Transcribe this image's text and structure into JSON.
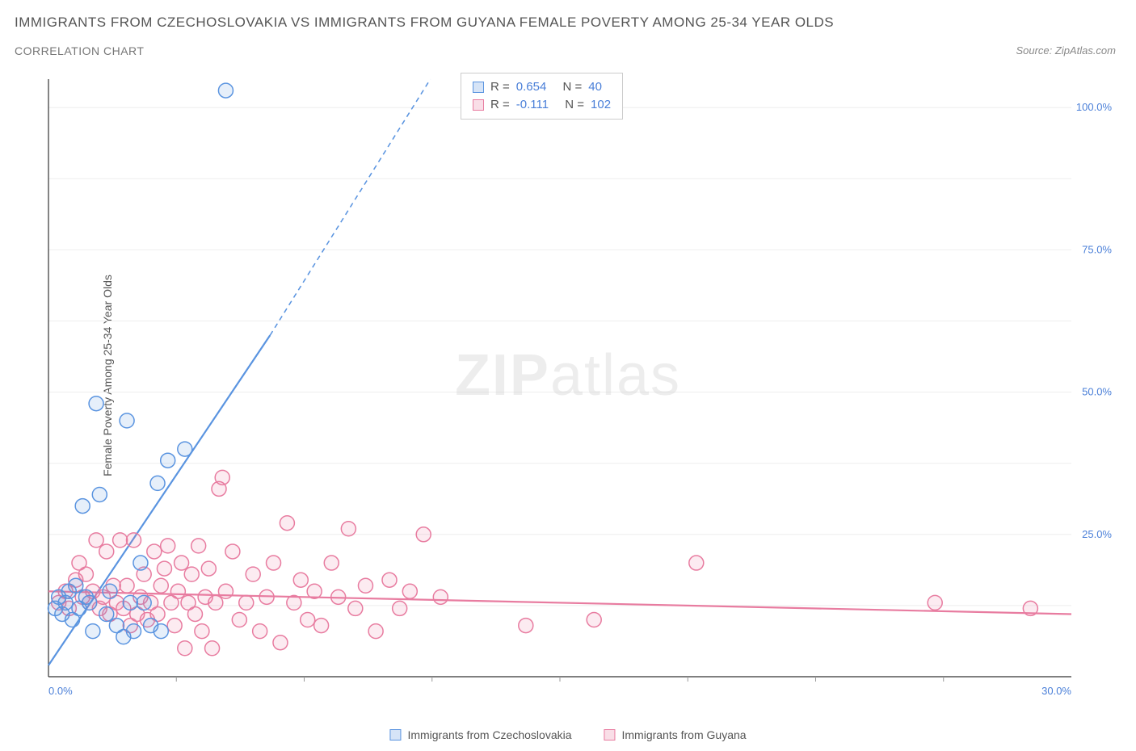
{
  "title_main": "IMMIGRANTS FROM CZECHOSLOVAKIA VS IMMIGRANTS FROM GUYANA FEMALE POVERTY AMONG 25-34 YEAR OLDS",
  "title_sub": "CORRELATION CHART",
  "source_prefix": "Source: ",
  "source_name": "ZipAtlas.com",
  "y_axis_label": "Female Poverty Among 25-34 Year Olds",
  "watermark_a": "ZIP",
  "watermark_b": "atlas",
  "chart": {
    "type": "scatter",
    "background_color": "#ffffff",
    "grid_color": "#eeeeee",
    "axis_color": "#333333",
    "tick_color": "#999999",
    "x_range": [
      0,
      30
    ],
    "y_range": [
      0,
      105
    ],
    "x_ticks": [
      {
        "v": 0,
        "l": "0.0%"
      },
      {
        "v": 30,
        "l": "30.0%"
      }
    ],
    "y_ticks": [
      {
        "v": 25,
        "l": "25.0%"
      },
      {
        "v": 50,
        "l": "50.0%"
      },
      {
        "v": 75,
        "l": "75.0%"
      },
      {
        "v": 100,
        "l": "100.0%"
      }
    ],
    "x_minor_ticks": [
      3.75,
      7.5,
      11.25,
      15,
      18.75,
      22.5,
      26.25
    ],
    "y_minor_grid": [
      12.5,
      25,
      37.5,
      50,
      62.5,
      75,
      87.5,
      100
    ],
    "marker_radius": 9,
    "marker_stroke_width": 1.5,
    "marker_fill_opacity": 0.15,
    "series": [
      {
        "key": "czechoslovakia",
        "label": "Immigrants from Czechoslovakia",
        "color": "#5a94e0",
        "R": "0.654",
        "N": "40",
        "trend": {
          "x1": 0,
          "y1": 2,
          "x2_solid": 6.5,
          "y2_solid": 60,
          "x2_dash": 11.2,
          "y2_dash": 105,
          "width": 2.2,
          "dash": "6,5"
        },
        "points": [
          [
            0.2,
            12
          ],
          [
            0.3,
            14
          ],
          [
            0.4,
            11
          ],
          [
            0.5,
            13
          ],
          [
            0.6,
            15
          ],
          [
            0.7,
            10
          ],
          [
            0.8,
            16
          ],
          [
            0.9,
            12
          ],
          [
            1.0,
            30
          ],
          [
            1.1,
            14
          ],
          [
            1.2,
            13
          ],
          [
            1.3,
            8
          ],
          [
            1.5,
            32
          ],
          [
            1.7,
            11
          ],
          [
            1.8,
            15
          ],
          [
            2.0,
            9
          ],
          [
            2.2,
            7
          ],
          [
            2.4,
            13
          ],
          [
            2.5,
            8
          ],
          [
            2.7,
            20
          ],
          [
            3.0,
            9
          ],
          [
            1.4,
            48
          ],
          [
            2.3,
            45
          ],
          [
            3.2,
            34
          ],
          [
            3.5,
            38
          ],
          [
            4.0,
            40
          ],
          [
            2.8,
            13
          ],
          [
            3.3,
            8
          ],
          [
            5.2,
            103
          ]
        ]
      },
      {
        "key": "guyana",
        "label": "Immigrants from Guyana",
        "color": "#e87ca0",
        "R": "-0.111",
        "N": "102",
        "trend": {
          "x1": 0,
          "y1": 15,
          "x2_solid": 30,
          "y2_solid": 11,
          "width": 2.2
        },
        "points": [
          [
            0.3,
            13
          ],
          [
            0.5,
            15
          ],
          [
            0.6,
            12
          ],
          [
            0.8,
            17
          ],
          [
            0.9,
            20
          ],
          [
            1.0,
            14
          ],
          [
            1.1,
            18
          ],
          [
            1.2,
            13
          ],
          [
            1.3,
            15
          ],
          [
            1.4,
            24
          ],
          [
            1.5,
            12
          ],
          [
            1.6,
            14
          ],
          [
            1.7,
            22
          ],
          [
            1.8,
            11
          ],
          [
            1.9,
            16
          ],
          [
            2.0,
            13
          ],
          [
            2.1,
            24
          ],
          [
            2.2,
            12
          ],
          [
            2.3,
            16
          ],
          [
            2.4,
            9
          ],
          [
            2.5,
            24
          ],
          [
            2.6,
            11
          ],
          [
            2.7,
            14
          ],
          [
            2.8,
            18
          ],
          [
            2.9,
            10
          ],
          [
            3.0,
            13
          ],
          [
            3.1,
            22
          ],
          [
            3.2,
            11
          ],
          [
            3.3,
            16
          ],
          [
            3.4,
            19
          ],
          [
            3.5,
            23
          ],
          [
            3.6,
            13
          ],
          [
            3.7,
            9
          ],
          [
            3.8,
            15
          ],
          [
            3.9,
            20
          ],
          [
            4.0,
            5
          ],
          [
            4.1,
            13
          ],
          [
            4.2,
            18
          ],
          [
            4.3,
            11
          ],
          [
            4.4,
            23
          ],
          [
            4.5,
            8
          ],
          [
            4.6,
            14
          ],
          [
            4.7,
            19
          ],
          [
            4.8,
            5
          ],
          [
            4.9,
            13
          ],
          [
            5.0,
            33
          ],
          [
            5.1,
            35
          ],
          [
            5.2,
            15
          ],
          [
            5.4,
            22
          ],
          [
            5.6,
            10
          ],
          [
            5.8,
            13
          ],
          [
            6.0,
            18
          ],
          [
            6.2,
            8
          ],
          [
            6.4,
            14
          ],
          [
            6.6,
            20
          ],
          [
            6.8,
            6
          ],
          [
            7.0,
            27
          ],
          [
            7.2,
            13
          ],
          [
            7.4,
            17
          ],
          [
            7.6,
            10
          ],
          [
            7.8,
            15
          ],
          [
            8.0,
            9
          ],
          [
            8.3,
            20
          ],
          [
            8.5,
            14
          ],
          [
            8.8,
            26
          ],
          [
            9.0,
            12
          ],
          [
            9.3,
            16
          ],
          [
            9.6,
            8
          ],
          [
            10.0,
            17
          ],
          [
            10.3,
            12
          ],
          [
            10.6,
            15
          ],
          [
            11.0,
            25
          ],
          [
            11.5,
            14
          ],
          [
            14.0,
            9
          ],
          [
            16.0,
            10
          ],
          [
            19.0,
            20
          ],
          [
            26.0,
            13
          ],
          [
            28.8,
            12
          ]
        ]
      }
    ],
    "stat_labels": {
      "R": "R =",
      "N": "N ="
    }
  },
  "legend_swatch_size": 14
}
